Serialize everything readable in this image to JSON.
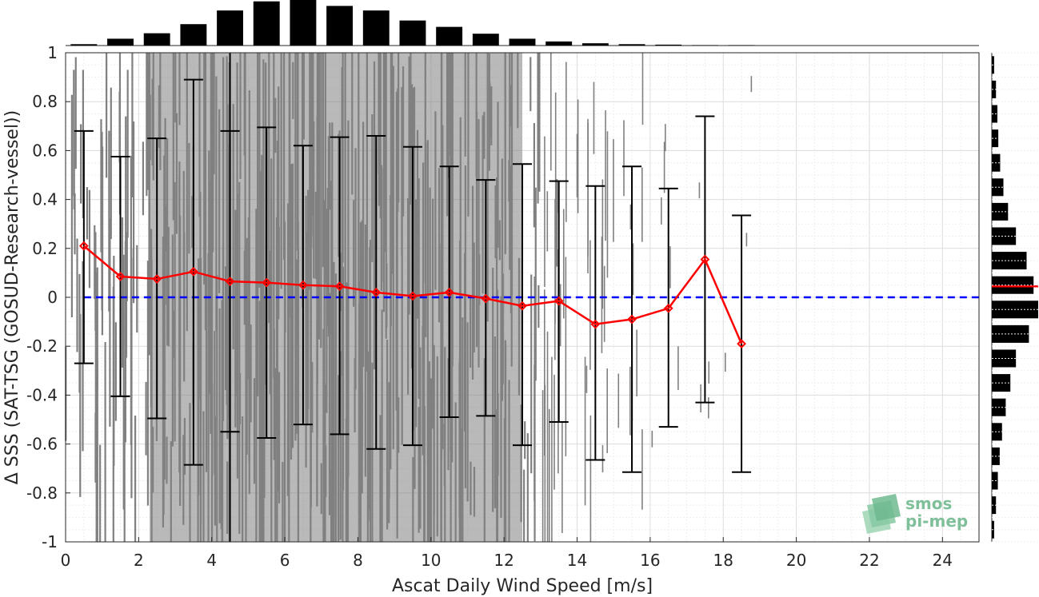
{
  "chart_data": {
    "type": "scatter",
    "xlabel": "Ascat Daily Wind Speed [m/s]",
    "ylabel": "Δ SSS (SAT-TSG (GOSUD-Research-vessel))",
    "xlim": [
      0,
      25
    ],
    "ylim": [
      -1,
      1
    ],
    "x_ticks": [
      "0",
      "2",
      "4",
      "6",
      "8",
      "10",
      "12",
      "14",
      "16",
      "18",
      "20",
      "22",
      "24"
    ],
    "y_ticks": [
      "-1",
      "-0.8",
      "-0.6",
      "-0.4",
      "-0.2",
      "0",
      "0.2",
      "0.4",
      "0.6",
      "0.8",
      "1"
    ],
    "grid": true,
    "scatter_color": "#808080",
    "zero_line": {
      "y": 0,
      "color": "#0000ff",
      "style": "dashed"
    },
    "mean_line_color": "#ff0000",
    "vertical_marker_x": 4.5,
    "binned_stats": {
      "x": [
        0.5,
        1.5,
        2.5,
        3.5,
        4.5,
        5.5,
        6.5,
        7.5,
        8.5,
        9.5,
        10.5,
        11.5,
        12.5,
        13.5,
        14.5,
        15.5,
        16.5,
        17.5,
        18.5
      ],
      "mean": [
        0.21,
        0.085,
        0.075,
        0.105,
        0.065,
        0.06,
        0.05,
        0.045,
        0.02,
        0.005,
        0.02,
        -0.005,
        -0.035,
        -0.015,
        -0.11,
        -0.09,
        -0.045,
        0.155,
        -0.19
      ],
      "upper": [
        0.68,
        0.575,
        0.65,
        0.89,
        0.68,
        0.695,
        0.62,
        0.655,
        0.66,
        0.615,
        0.535,
        0.48,
        0.545,
        0.475,
        0.455,
        0.535,
        0.445,
        0.74,
        0.335
      ],
      "lower": [
        -0.27,
        -0.405,
        -0.495,
        -0.685,
        -0.55,
        -0.575,
        -0.52,
        -0.56,
        -0.62,
        -0.605,
        -0.49,
        -0.485,
        -0.605,
        -0.51,
        -0.665,
        -0.715,
        -0.53,
        -0.43,
        -0.715
      ]
    },
    "top_histogram": {
      "bin_centers": [
        0.5,
        1.5,
        2.5,
        3.5,
        4.5,
        5.5,
        6.5,
        7.5,
        8.5,
        9.5,
        10.5,
        11.5,
        12.5,
        13.5,
        14.5,
        15.5,
        16.5,
        17.5,
        18.5,
        19.5,
        20.5,
        21.5,
        22.5,
        23.5
      ],
      "relative_counts": [
        0.03,
        0.15,
        0.27,
        0.47,
        0.77,
        0.97,
        1.0,
        0.87,
        0.77,
        0.55,
        0.41,
        0.26,
        0.15,
        0.09,
        0.05,
        0.03,
        0.02,
        0.01,
        0.01,
        0.0,
        0.0,
        0.0,
        0.0,
        0.0
      ]
    },
    "right_histogram": {
      "bin_centers": [
        -0.95,
        -0.85,
        -0.75,
        -0.65,
        -0.55,
        -0.45,
        -0.35,
        -0.25,
        -0.15,
        -0.05,
        0.05,
        0.15,
        0.25,
        0.35,
        0.45,
        0.55,
        0.65,
        0.75,
        0.85,
        0.95
      ],
      "relative_counts": [
        0.05,
        0.09,
        0.13,
        0.17,
        0.22,
        0.3,
        0.4,
        0.52,
        0.8,
        1.0,
        0.9,
        0.75,
        0.52,
        0.35,
        0.25,
        0.18,
        0.14,
        0.12,
        0.09,
        0.05
      ],
      "mean_marker": 0.045,
      "mean_marker_color": "#ff0000"
    }
  },
  "logo": {
    "line1": "smos",
    "line2": "pi-mep"
  }
}
